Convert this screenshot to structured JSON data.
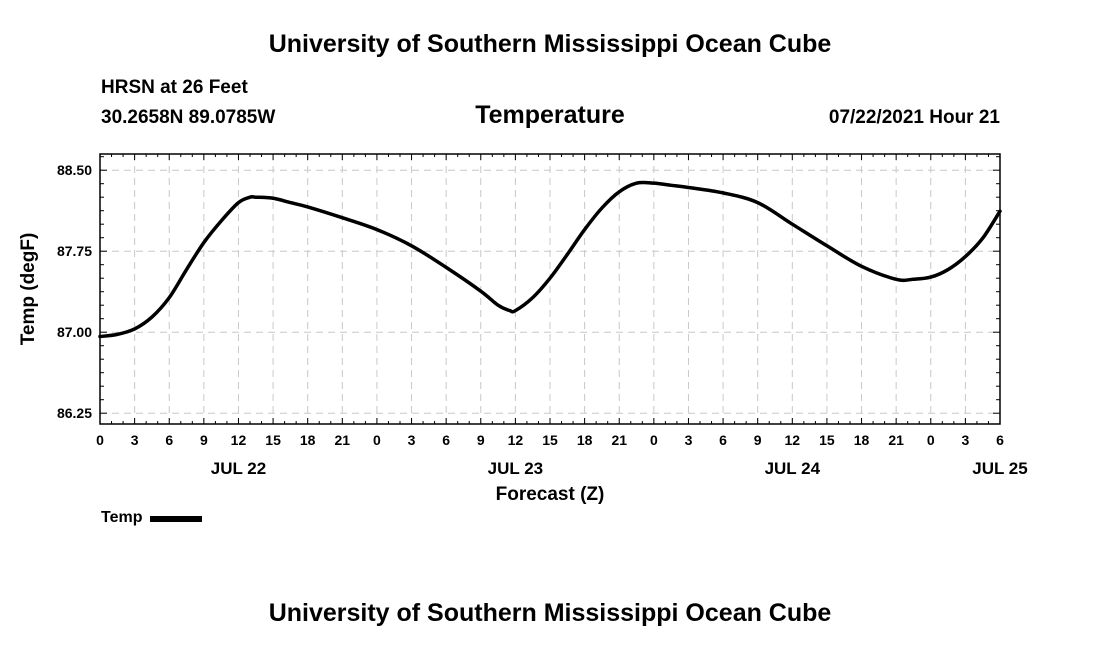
{
  "page": {
    "title_top": "University of Southern Mississippi Ocean Cube",
    "title_bottom": "University of Southern Mississippi Ocean Cube",
    "station": "HRSN at 26 Feet",
    "coordinates": "30.2658N  89.0785W",
    "datetime": "07/22/2021 Hour 21"
  },
  "chart_data": {
    "type": "line",
    "title": "Temperature",
    "xlabel": "Forecast (Z)",
    "ylabel": "Temp (degF)",
    "x_unit": "hours since 2021-07-22 00Z",
    "xlim": [
      0,
      78
    ],
    "ylim": [
      86.15,
      88.65
    ],
    "yticks": [
      86.25,
      87.0,
      87.75,
      88.5
    ],
    "ytick_labels": [
      "86.25",
      "87.00",
      "87.75",
      "88.50"
    ],
    "xticks": [
      0,
      3,
      6,
      9,
      12,
      15,
      18,
      21,
      24,
      27,
      30,
      33,
      36,
      39,
      42,
      45,
      48,
      51,
      54,
      57,
      60,
      63,
      66,
      69,
      72,
      75,
      78
    ],
    "xtick_labels": [
      "0",
      "3",
      "6",
      "9",
      "12",
      "15",
      "18",
      "21",
      "0",
      "3",
      "6",
      "9",
      "12",
      "15",
      "18",
      "21",
      "0",
      "3",
      "6",
      "9",
      "12",
      "15",
      "18",
      "21",
      "0",
      "3",
      "6"
    ],
    "date_labels": [
      {
        "x": 12,
        "label": "JUL 22"
      },
      {
        "x": 36,
        "label": "JUL 23"
      },
      {
        "x": 60,
        "label": "JUL 24"
      },
      {
        "x": 78,
        "label": "JUL 25"
      }
    ],
    "grid": true,
    "legend": "bottom-left",
    "series": [
      {
        "name": "Temp",
        "color": "#000000",
        "x": [
          0,
          1.5,
          3,
          4.5,
          6,
          7.5,
          9,
          10.5,
          12,
          13,
          13.5,
          15,
          16.5,
          18,
          21,
          24,
          27,
          30,
          33,
          34.5,
          35.5,
          36,
          37.5,
          39,
          40.5,
          42,
          43.5,
          45,
          46.5,
          48,
          49.5,
          51,
          54,
          57,
          60,
          63,
          66,
          69,
          70.5,
          72,
          73.5,
          75,
          76.5,
          78
        ],
        "values": [
          86.96,
          86.98,
          87.03,
          87.14,
          87.32,
          87.58,
          87.83,
          88.03,
          88.2,
          88.25,
          88.25,
          88.24,
          88.2,
          88.16,
          88.06,
          87.95,
          87.8,
          87.6,
          87.38,
          87.25,
          87.2,
          87.2,
          87.32,
          87.5,
          87.72,
          87.95,
          88.15,
          88.3,
          88.38,
          88.38,
          88.36,
          88.34,
          88.29,
          88.2,
          88.0,
          87.8,
          87.61,
          87.49,
          87.49,
          87.51,
          87.58,
          87.7,
          87.87,
          88.12
        ]
      }
    ]
  }
}
